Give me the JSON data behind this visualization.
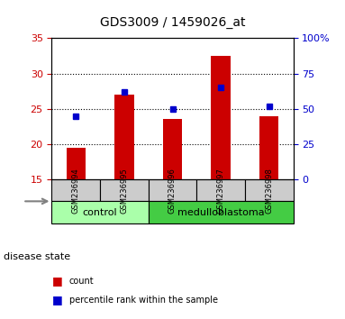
{
  "title": "GDS3009 / 1459026_at",
  "samples": [
    "GSM236994",
    "GSM236995",
    "GSM236996",
    "GSM236997",
    "GSM236998"
  ],
  "counts": [
    19.5,
    27.0,
    23.5,
    32.5,
    24.0
  ],
  "percentiles": [
    45,
    62,
    50,
    65,
    52
  ],
  "ylim_left": [
    15,
    35
  ],
  "ylim_right": [
    0,
    100
  ],
  "yticks_left": [
    15,
    20,
    25,
    30,
    35
  ],
  "yticks_right": [
    0,
    25,
    50,
    75,
    100
  ],
  "yticklabels_right": [
    "0",
    "25",
    "50",
    "75",
    "100%"
  ],
  "bar_color": "#cc0000",
  "dot_color": "#0000cc",
  "bar_width": 0.4,
  "groups": [
    {
      "label": "control",
      "samples": [
        "GSM236994",
        "GSM236995"
      ],
      "color": "#aaffaa"
    },
    {
      "label": "medulloblastoma",
      "samples": [
        "GSM236996",
        "GSM236997",
        "GSM236998"
      ],
      "color": "#44cc44"
    }
  ],
  "group_label": "disease state",
  "legend_count": "count",
  "legend_percentile": "percentile rank within the sample",
  "background_color": "#ffffff",
  "plot_bg_color": "#ffffff",
  "tick_color_left": "#cc0000",
  "tick_color_right": "#0000cc",
  "sample_box_color": "#cccccc"
}
